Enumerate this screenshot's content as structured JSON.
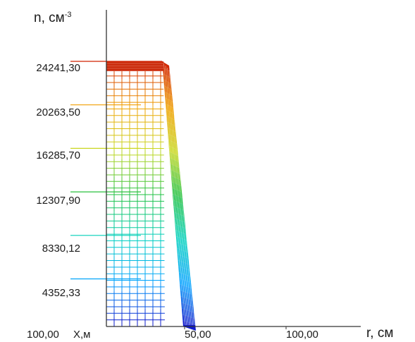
{
  "chart_data": {
    "type": "surface",
    "ylabel": "n, см",
    "ylabel_exponent": "-3",
    "xlabel": "r, см",
    "depth_label": "X,м",
    "y_ticks": [
      "24241,30",
      "20263,50",
      "16285,70",
      "12307,90",
      "8330,12",
      "4352,33"
    ],
    "y_tick_values": [
      24241.3,
      20263.5,
      16285.7,
      12307.9,
      8330.12,
      4352.33
    ],
    "x_tick_labels": [
      "100,00",
      "50,00",
      "100,00"
    ],
    "ylim": [
      0,
      24241.3
    ],
    "r_extent": [
      0,
      100
    ],
    "plateau_value": 24241.3,
    "plateau_radius": 20,
    "edge_radius": 30,
    "colormap": [
      "#1010c8",
      "#00a0ff",
      "#00d0c0",
      "#20c040",
      "#c8d820",
      "#f0a000",
      "#d02000"
    ]
  }
}
